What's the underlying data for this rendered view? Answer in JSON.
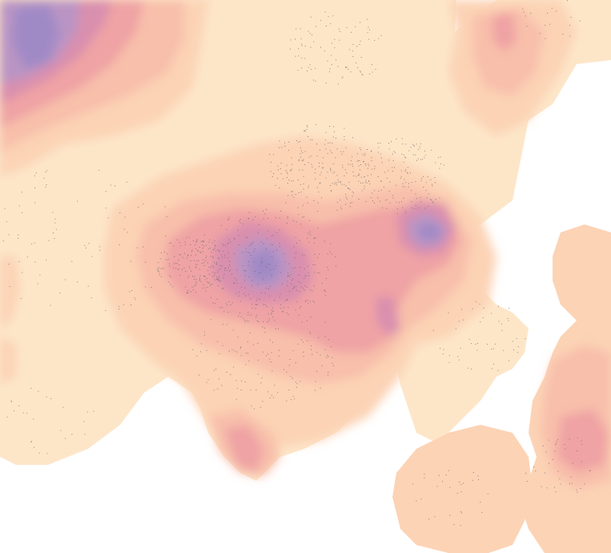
{
  "map": {
    "type": "density-contour",
    "legend": "none",
    "labels": "none",
    "palette": {
      "background": "#ffffff",
      "level_1": "#fde6c8",
      "level_2": "#fcd3b5",
      "level_3": "#f8bfaa",
      "level_4": "#efa3a4",
      "level_5": "#d98fae",
      "level_6": "#b994c4",
      "level_7": "#a08ac6",
      "points": "#6b6464"
    }
  }
}
